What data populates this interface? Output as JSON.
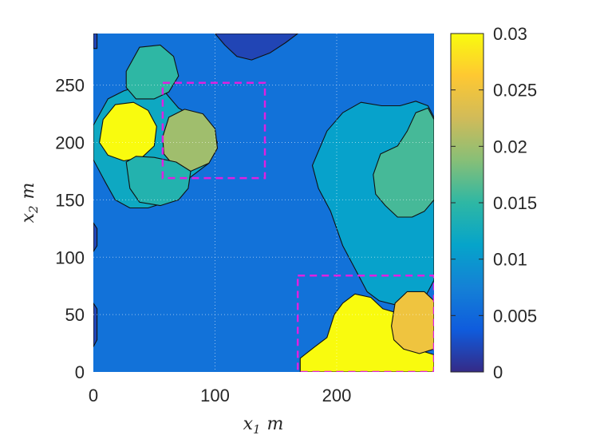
{
  "chart_data": {
    "type": "heatmap",
    "xlabel": "x_1 m",
    "ylabel": "x_2 m",
    "xlabel_parts": {
      "var": "x",
      "sub": "1",
      "unit": "m"
    },
    "ylabel_parts": {
      "var": "x",
      "sub": "2",
      "unit": "m"
    },
    "xlim": [
      0,
      280
    ],
    "ylim": [
      0,
      295
    ],
    "xticks": [
      0,
      100,
      200
    ],
    "yticks": [
      0,
      50,
      100,
      150,
      200,
      250
    ],
    "grid": true,
    "colorbar": {
      "min": 0,
      "max": 0.03,
      "ticks": [
        0,
        0.005,
        0.01,
        0.015,
        0.02,
        0.025,
        0.03
      ],
      "tick_labels": [
        "0",
        "0.005",
        "0.01",
        "0.015",
        "0.02",
        "0.025",
        "0.03"
      ],
      "colormap": "parula",
      "location": "right"
    },
    "background_value": 0.006,
    "regions": [
      {
        "name": "left-cyan-blob",
        "value": 0.012,
        "points": [
          [
            0,
            215
          ],
          [
            12,
            238
          ],
          [
            25,
            245
          ],
          [
            40,
            250
          ],
          [
            55,
            249
          ],
          [
            62,
            240
          ],
          [
            70,
            230
          ],
          [
            80,
            224
          ],
          [
            95,
            216
          ],
          [
            102,
            200
          ],
          [
            95,
            182
          ],
          [
            80,
            170
          ],
          [
            70,
            165
          ],
          [
            60,
            148
          ],
          [
            45,
            143
          ],
          [
            30,
            143
          ],
          [
            18,
            150
          ],
          [
            10,
            165
          ],
          [
            0,
            185
          ]
        ]
      },
      {
        "name": "upper-left-teal",
        "value": 0.015,
        "points": [
          [
            27,
            262
          ],
          [
            38,
            283
          ],
          [
            55,
            285
          ],
          [
            66,
            275
          ],
          [
            70,
            258
          ],
          [
            62,
            244
          ],
          [
            50,
            238
          ],
          [
            35,
            238
          ],
          [
            27,
            248
          ]
        ]
      },
      {
        "name": "middle-green",
        "value": 0.02,
        "points": [
          [
            57,
            205
          ],
          [
            62,
            222
          ],
          [
            75,
            229
          ],
          [
            90,
            225
          ],
          [
            100,
            212
          ],
          [
            102,
            195
          ],
          [
            95,
            182
          ],
          [
            80,
            175
          ],
          [
            66,
            180
          ],
          [
            58,
            190
          ]
        ]
      },
      {
        "name": "left-yellow",
        "value": 0.03,
        "points": [
          [
            5,
            200
          ],
          [
            8,
            220
          ],
          [
            18,
            233
          ],
          [
            33,
            235
          ],
          [
            45,
            228
          ],
          [
            52,
            214
          ],
          [
            50,
            197
          ],
          [
            40,
            187
          ],
          [
            25,
            184
          ],
          [
            12,
            189
          ]
        ]
      },
      {
        "name": "lower-left-teal",
        "value": 0.014,
        "points": [
          [
            27,
            183
          ],
          [
            30,
            160
          ],
          [
            38,
            148
          ],
          [
            55,
            145
          ],
          [
            70,
            150
          ],
          [
            78,
            160
          ],
          [
            80,
            175
          ],
          [
            68,
            183
          ],
          [
            50,
            187
          ],
          [
            35,
            188
          ]
        ]
      },
      {
        "name": "right-light-region",
        "value": 0.011,
        "points": [
          [
            192,
            210
          ],
          [
            205,
            226
          ],
          [
            220,
            235
          ],
          [
            237,
            232
          ],
          [
            252,
            232
          ],
          [
            265,
            236
          ],
          [
            275,
            232
          ],
          [
            280,
            222
          ],
          [
            280,
            80
          ],
          [
            270,
            60
          ],
          [
            250,
            58
          ],
          [
            235,
            62
          ],
          [
            225,
            70
          ],
          [
            215,
            90
          ],
          [
            205,
            110
          ],
          [
            195,
            140
          ],
          [
            185,
            160
          ],
          [
            180,
            180
          ]
        ]
      },
      {
        "name": "right-teal",
        "value": 0.016,
        "points": [
          [
            230,
            172
          ],
          [
            236,
            190
          ],
          [
            250,
            197
          ],
          [
            258,
            210
          ],
          [
            265,
            226
          ],
          [
            275,
            230
          ],
          [
            280,
            220
          ],
          [
            280,
            150
          ],
          [
            272,
            140
          ],
          [
            262,
            135
          ],
          [
            250,
            135
          ],
          [
            240,
            145
          ],
          [
            232,
            155
          ]
        ]
      },
      {
        "name": "lower-right-yellow",
        "value": 0.03,
        "points": [
          [
            170,
            0
          ],
          [
            170,
            12
          ],
          [
            182,
            22
          ],
          [
            192,
            30
          ],
          [
            198,
            50
          ],
          [
            205,
            60
          ],
          [
            215,
            68
          ],
          [
            228,
            65
          ],
          [
            238,
            55
          ],
          [
            248,
            52
          ],
          [
            256,
            40
          ],
          [
            265,
            20
          ],
          [
            280,
            15
          ],
          [
            280,
            0
          ]
        ]
      },
      {
        "name": "lower-right-orange",
        "value": 0.025,
        "points": [
          [
            245,
            40
          ],
          [
            248,
            60
          ],
          [
            258,
            70
          ],
          [
            272,
            70
          ],
          [
            280,
            62
          ],
          [
            280,
            20
          ],
          [
            268,
            16
          ],
          [
            255,
            20
          ],
          [
            247,
            28
          ]
        ]
      },
      {
        "name": "top-dark-notch",
        "value": 0.002,
        "points": [
          [
            100,
            295
          ],
          [
            108,
            285
          ],
          [
            118,
            275
          ],
          [
            130,
            272
          ],
          [
            145,
            278
          ],
          [
            158,
            287
          ],
          [
            168,
            295
          ]
        ]
      },
      {
        "name": "left-edge-dark-top",
        "value": 0.002,
        "points": [
          [
            0,
            295
          ],
          [
            0,
            282
          ],
          [
            3,
            282
          ],
          [
            3,
            295
          ]
        ]
      },
      {
        "name": "left-edge-dark-mid",
        "value": 0.002,
        "points": [
          [
            0,
            130
          ],
          [
            3,
            125
          ],
          [
            3,
            110
          ],
          [
            0,
            105
          ]
        ]
      },
      {
        "name": "left-edge-dark-bottom",
        "value": 0.002,
        "points": [
          [
            0,
            60
          ],
          [
            3,
            55
          ],
          [
            3,
            28
          ],
          [
            0,
            22
          ]
        ]
      }
    ],
    "dashed_rectangles": [
      {
        "name": "box-upper-left",
        "x": [
          57,
          141
        ],
        "y": [
          169,
          252
        ],
        "color": "#e020e0"
      },
      {
        "name": "box-lower-right",
        "x": [
          168,
          280
        ],
        "y": [
          0,
          84
        ],
        "color": "#e020e0"
      }
    ]
  }
}
